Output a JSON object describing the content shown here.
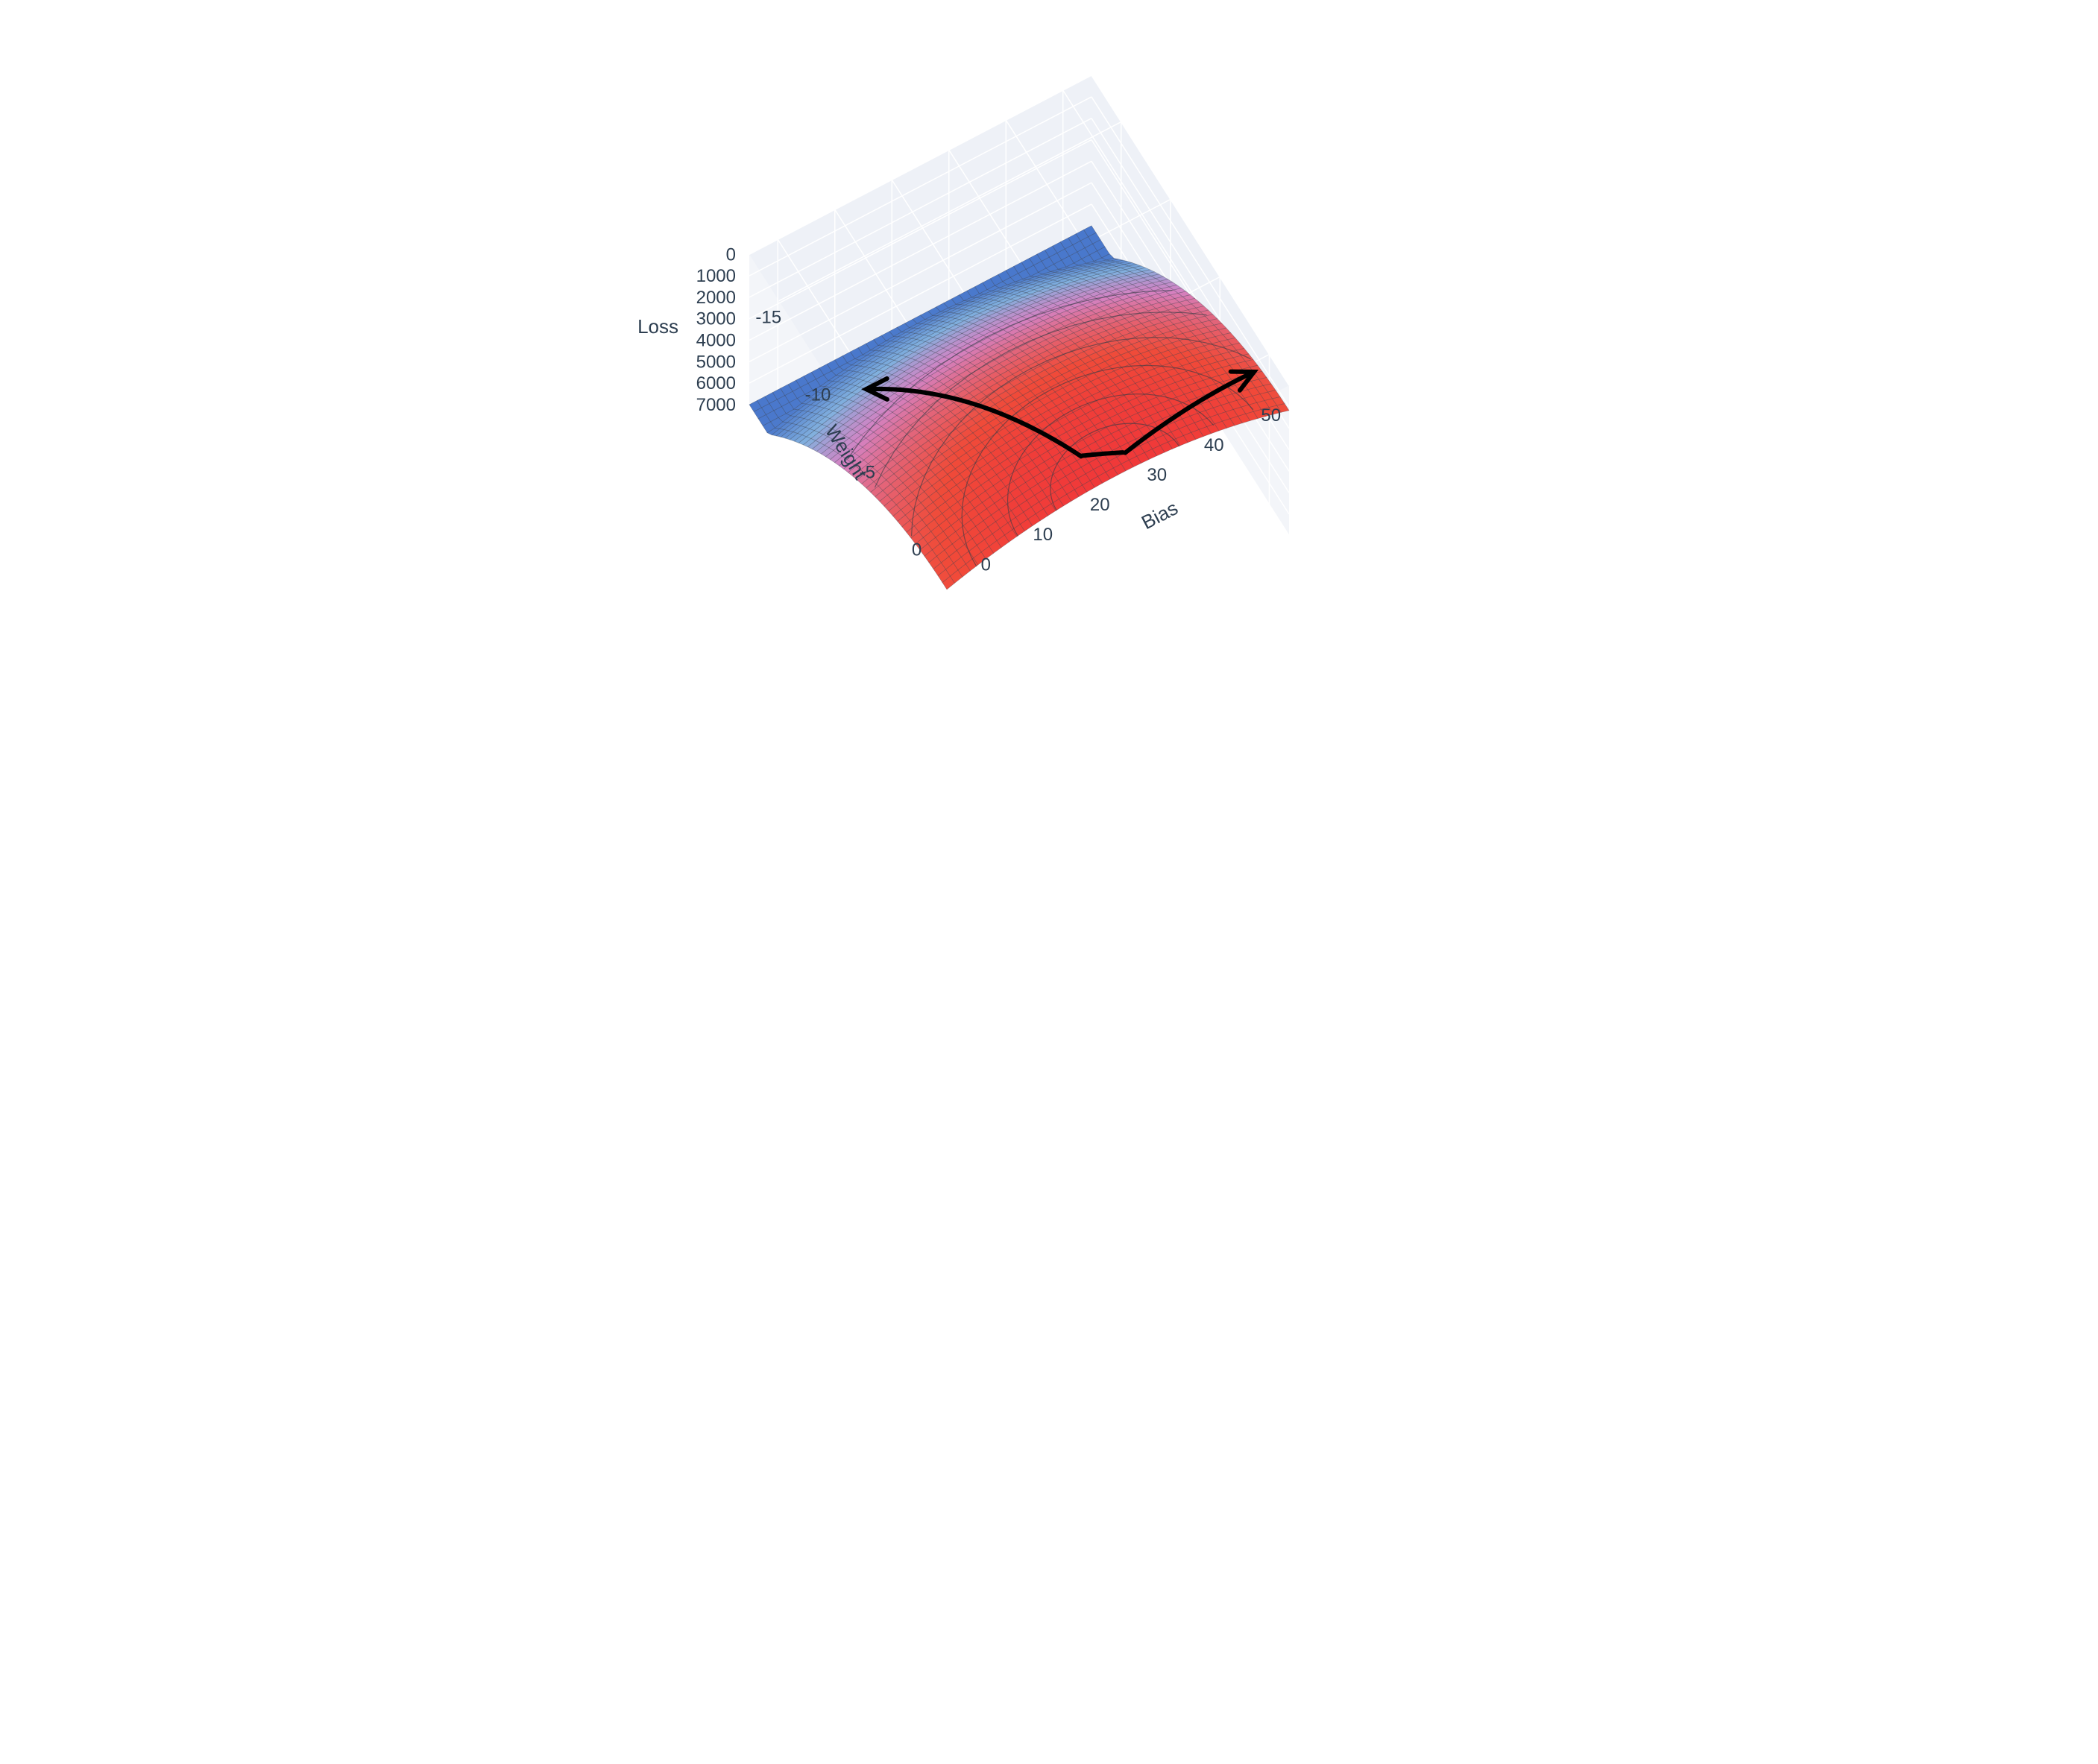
{
  "chart": {
    "type": "3d-surface",
    "background_color": "#ffffff",
    "cube_fill": "#ebeef5",
    "cube_fill_opacity": 0.6,
    "grid_color": "#ffffff",
    "grid_stroke_width": 1.5,
    "axis_label_color": "#2d3e50",
    "axis_label_fontsize": 26,
    "tick_label_color": "#2d3e50",
    "tick_label_fontsize": 24,
    "z_axis": {
      "label": "Loss",
      "ticks": [
        0,
        1000,
        2000,
        3000,
        4000,
        5000,
        6000,
        7000
      ],
      "min": 0,
      "max": 7000
    },
    "x_axis": {
      "label": "Weight",
      "ticks": [
        -15,
        -10,
        -5,
        0
      ],
      "min": -18,
      "max": 2
    },
    "y_axis": {
      "label": "Bias",
      "ticks": [
        0,
        10,
        20,
        30,
        40,
        50
      ],
      "min": -5,
      "max": 55
    },
    "surface": {
      "color_high": "#3b4cc0",
      "color_mid_high": "#5bb8d8",
      "color_mid": "#d070c0",
      "color_low": "#f03030",
      "contour_stroke": "#333a44",
      "contour_stroke_width": 0.7,
      "opacity": 0.92
    },
    "arrows": {
      "stroke": "#000000",
      "stroke_width": 6
    },
    "projection": {
      "azimuth_deg": -60,
      "elevation_deg": 25
    }
  }
}
